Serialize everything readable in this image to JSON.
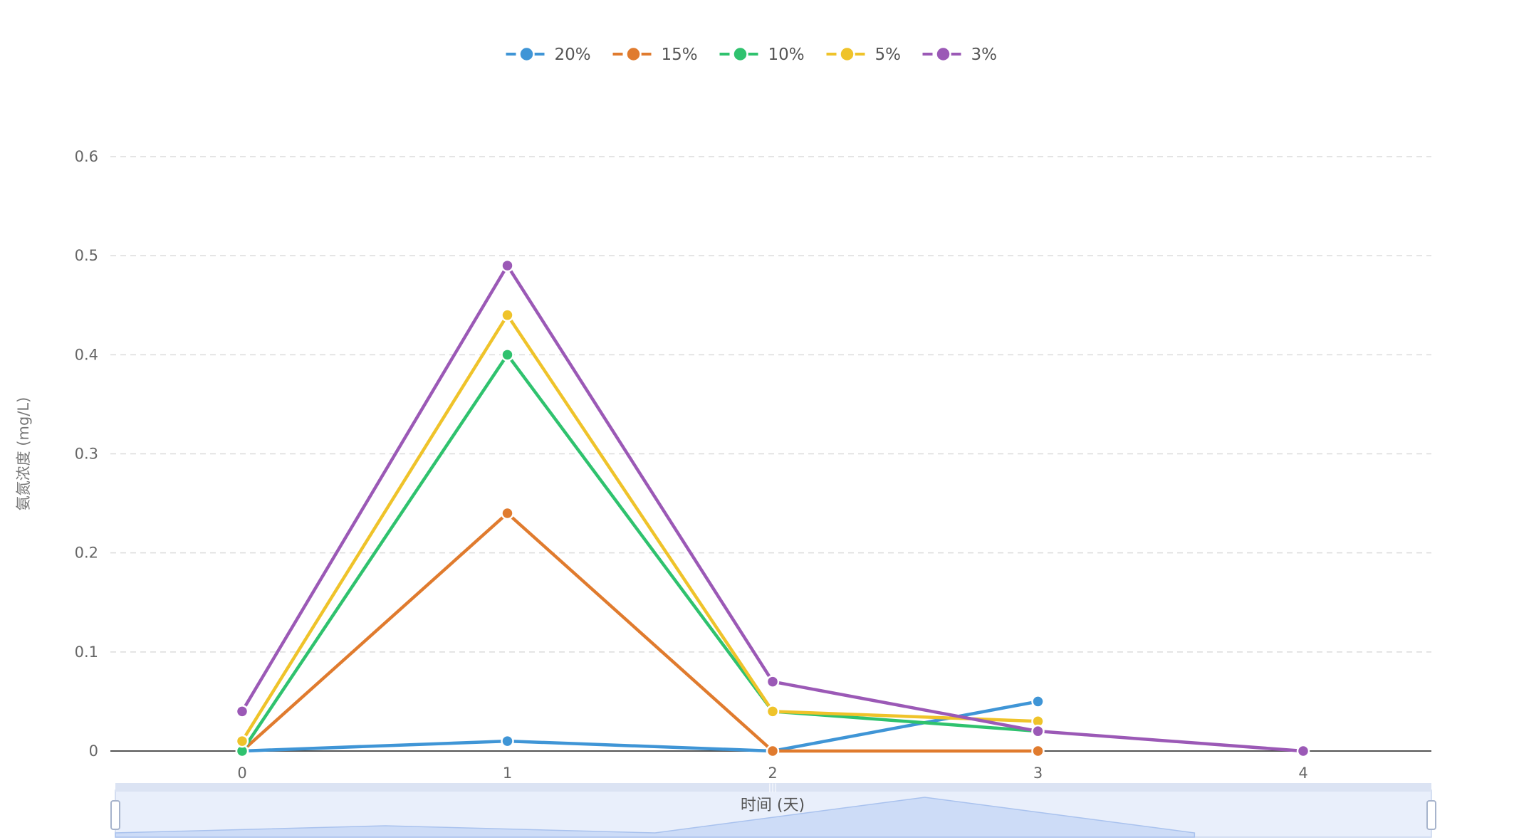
{
  "chart_data": {
    "type": "line",
    "title": "",
    "xlabel": "时间 (天)",
    "ylabel": "氨氮浓度 (mg/L)",
    "x": [
      0,
      1,
      2,
      3,
      4
    ],
    "xlim": [
      0,
      4
    ],
    "ylim": [
      0,
      0.6
    ],
    "y_ticks": [
      0,
      0.1,
      0.2,
      0.3,
      0.4,
      0.5,
      0.6
    ],
    "y_tick_labels": [
      "0",
      "0.1",
      "0.2",
      "0.3",
      "0.4",
      "0.5",
      "0.6"
    ],
    "x_tick_labels": [
      "0",
      "1",
      "2",
      "3",
      "4"
    ],
    "grid": true,
    "legend_position": "top-center",
    "series": [
      {
        "name": "20%",
        "color": "#3f95d6",
        "values": [
          0,
          0.01,
          0,
          0.05,
          null
        ]
      },
      {
        "name": "15%",
        "color": "#e07b2e",
        "values": [
          0,
          0.24,
          0,
          0,
          null
        ]
      },
      {
        "name": "10%",
        "color": "#2fc26e",
        "values": [
          0,
          0.4,
          0.04,
          0.02,
          null
        ]
      },
      {
        "name": "5%",
        "color": "#efc32a",
        "values": [
          0.01,
          0.44,
          0.04,
          0.03,
          null
        ]
      },
      {
        "name": "3%",
        "color": "#9b59b6",
        "values": [
          0.04,
          0.49,
          0.07,
          0.02,
          0
        ]
      }
    ],
    "data_zoom": {
      "range": [
        0,
        100
      ],
      "shadow_series_index": 0
    }
  }
}
